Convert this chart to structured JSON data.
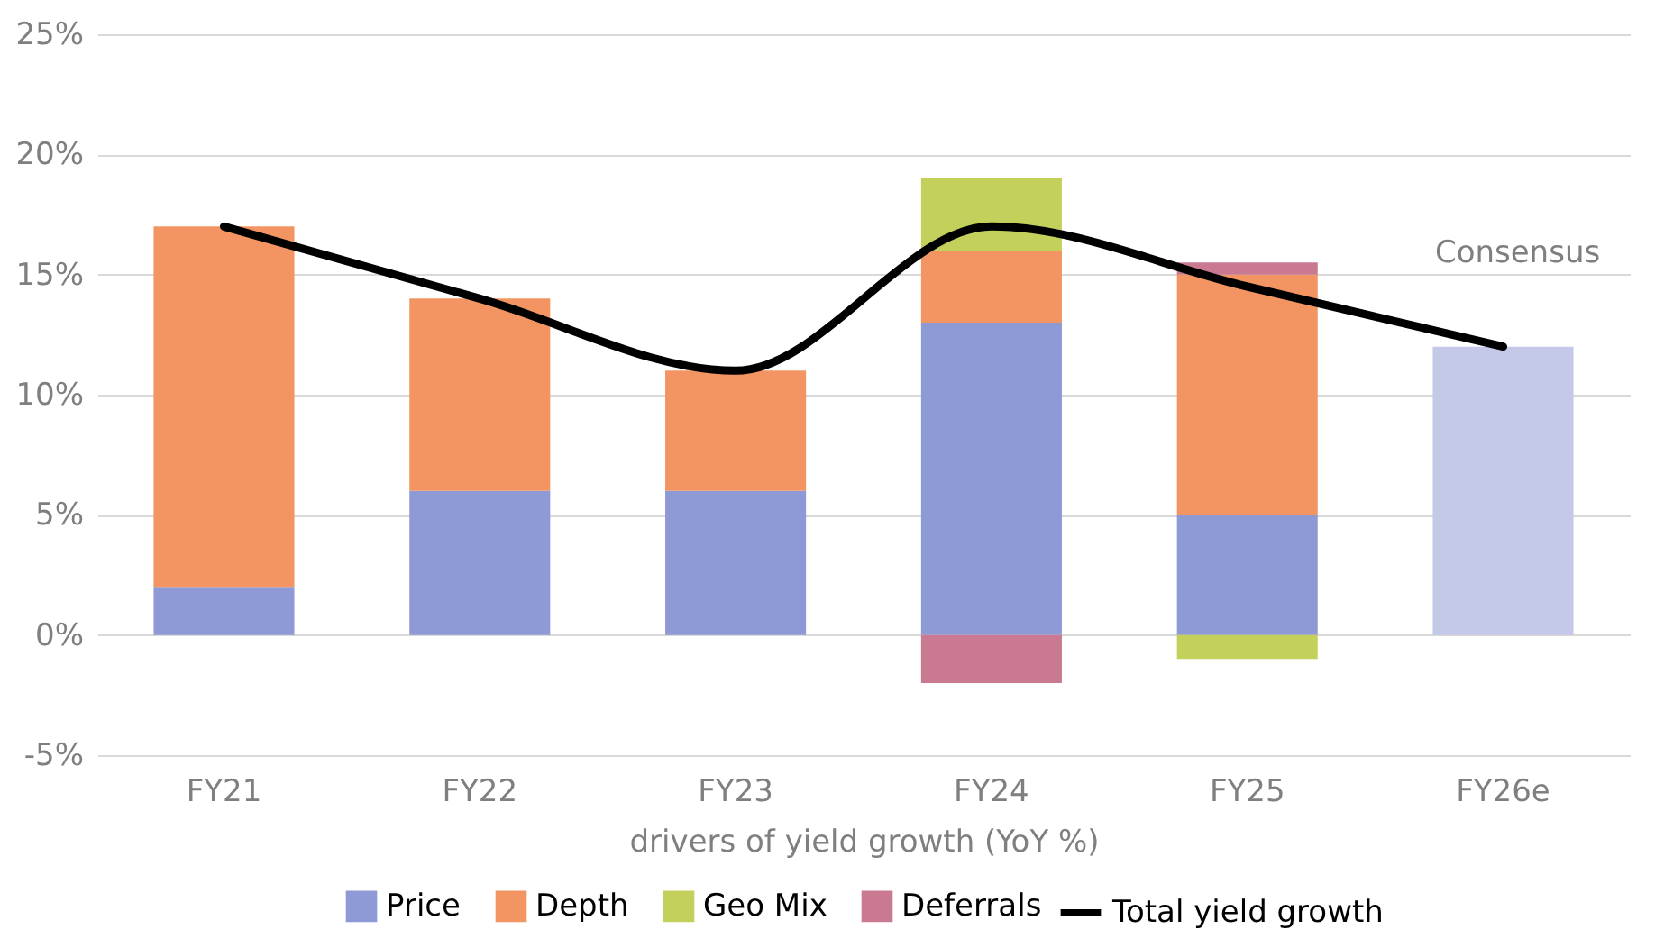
{
  "chart_data": {
    "type": "bar",
    "stacked": true,
    "xlabel": "drivers of yield growth (YoY %)",
    "categories": [
      "FY21",
      "FY22",
      "FY23",
      "FY24",
      "FY25",
      "FY26e"
    ],
    "series": [
      {
        "name": "Price",
        "color": "#8e9ad6",
        "values": [
          2,
          6,
          6,
          13,
          5,
          null
        ]
      },
      {
        "name": "Depth",
        "color": "#f29562",
        "values": [
          15,
          8,
          5,
          3,
          10,
          null
        ]
      },
      {
        "name": "Geo Mix",
        "color": "#c3d05c",
        "values": [
          null,
          null,
          null,
          3,
          -1,
          null
        ]
      },
      {
        "name": "Deferrals",
        "color": "#c97a91",
        "values": [
          null,
          null,
          null,
          -2,
          0.5,
          null
        ]
      },
      {
        "color": "#c5c9e8",
        "values": [
          null,
          null,
          null,
          null,
          null,
          12
        ]
      },
      {
        "name": "Total yield growth",
        "type": "line",
        "color": "#000000",
        "values": [
          17,
          14,
          11,
          17,
          14.5,
          12
        ]
      }
    ],
    "ylim": [
      -5,
      25
    ],
    "yticks": [
      {
        "value": -5,
        "label": "-5%"
      },
      {
        "value": 0,
        "label": "0%"
      },
      {
        "value": 5,
        "label": "5%"
      },
      {
        "value": 10,
        "label": "10%"
      },
      {
        "value": 15,
        "label": "15%"
      },
      {
        "value": 20,
        "label": "20%"
      },
      {
        "value": 25,
        "label": "25%"
      }
    ],
    "annotations": [
      {
        "text": "Consensus",
        "x": "FY26e",
        "y": 12
      }
    ],
    "grid": true,
    "legend": "bottom"
  }
}
